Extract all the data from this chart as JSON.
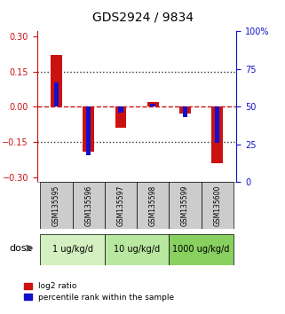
{
  "title": "GDS2924 / 9834",
  "samples": [
    "GSM135595",
    "GSM135596",
    "GSM135597",
    "GSM135598",
    "GSM135599",
    "GSM135600"
  ],
  "log2_ratio": [
    0.22,
    -0.19,
    -0.09,
    0.02,
    -0.03,
    -0.24
  ],
  "percentile_rank": [
    66,
    18,
    46,
    52,
    43,
    26
  ],
  "dose_groups": [
    {
      "label": "1 ug/kg/d",
      "samples": [
        0,
        1
      ],
      "color": "#d4f0c0"
    },
    {
      "label": "10 ug/kg/d",
      "samples": [
        2,
        3
      ],
      "color": "#b8e8a0"
    },
    {
      "label": "1000 ug/kg/d",
      "samples": [
        4,
        5
      ],
      "color": "#88d060"
    }
  ],
  "bar_width": 0.35,
  "blue_bar_width": 0.15,
  "ylim_left": [
    -0.32,
    0.32
  ],
  "ylim_right": [
    0,
    100
  ],
  "yticks_left": [
    -0.3,
    -0.15,
    0,
    0.15,
    0.3
  ],
  "yticks_right": [
    0,
    25,
    50,
    75,
    100
  ],
  "hline_dotted": [
    0.15,
    -0.15
  ],
  "hline_zero": 0,
  "red_color": "#cc1111",
  "blue_color": "#1111cc",
  "sample_box_color": "#cccccc",
  "legend_red_label": "log2 ratio",
  "legend_blue_label": "percentile rank within the sample"
}
